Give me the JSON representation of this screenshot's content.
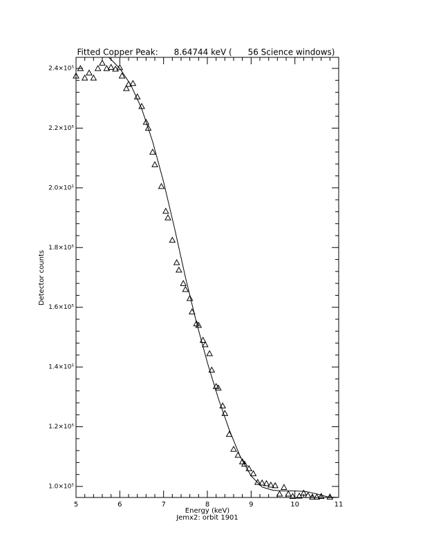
{
  "chart_data": {
    "type": "scatter",
    "title": "Fitted Copper Peak:      8.64744 keV (      56 Science windows)",
    "xlabel": "Energy (keV)",
    "subtitle": "Jemx2: orbit 1901",
    "ylabel": "Detector counts",
    "xlim": [
      5,
      11
    ],
    "xticks": [
      5,
      6,
      7,
      8,
      9,
      10,
      11
    ],
    "ylim": [
      96300,
      243700
    ],
    "yticks": [
      {
        "value": 100000,
        "label": "1.0×10⁵"
      },
      {
        "value": 120000,
        "label": "1.2×10⁵"
      },
      {
        "value": 140000,
        "label": "1.4×10⁵"
      },
      {
        "value": 160000,
        "label": "1.6×10⁵"
      },
      {
        "value": 180000,
        "label": "1.8×10⁵"
      },
      {
        "value": 200000,
        "label": "2.0×10⁵"
      },
      {
        "value": 220000,
        "label": "2.2×10⁵"
      },
      {
        "value": 240000,
        "label": "2.4×10⁵"
      }
    ],
    "series": [
      {
        "marker": "triangle",
        "color": "#000000",
        "x": [
          5.0,
          5.1,
          5.2,
          5.3,
          5.4,
          5.5,
          5.6,
          5.7,
          5.8,
          5.9,
          6.0,
          6.05,
          6.15,
          6.2,
          6.3,
          6.4,
          6.5,
          6.6,
          6.65,
          6.75,
          6.8,
          6.95,
          7.05,
          7.1,
          7.2,
          7.3,
          7.35,
          7.45,
          7.5,
          7.6,
          7.65,
          7.75,
          7.8,
          7.9,
          7.95,
          8.05,
          8.1,
          8.2,
          8.25,
          8.35,
          8.4,
          8.5,
          8.6,
          8.7,
          8.8,
          8.85,
          8.95,
          9.05,
          9.15,
          9.25,
          9.35,
          9.45,
          9.55,
          9.65,
          9.75,
          9.85,
          9.95,
          10.1,
          10.2,
          10.3,
          10.4,
          10.5,
          10.6,
          10.8
        ],
        "values": [
          237500,
          240000,
          236800,
          238500,
          236800,
          240000,
          241800,
          240000,
          240400,
          239800,
          240300,
          237500,
          233300,
          234700,
          235000,
          230500,
          227300,
          222000,
          220000,
          212000,
          207800,
          200500,
          192200,
          190000,
          182500,
          175000,
          172500,
          168000,
          166000,
          163000,
          158500,
          154500,
          154000,
          149000,
          147500,
          144500,
          139000,
          133500,
          133000,
          127000,
          124500,
          117500,
          112500,
          110500,
          108300,
          107500,
          106000,
          104300,
          101400,
          101200,
          101000,
          100500,
          100300,
          97500,
          99700,
          97500,
          96700,
          96800,
          97800,
          97000,
          96500,
          96500,
          96700,
          96500
        ]
      },
      {
        "style": "line",
        "color": "#000000",
        "x": [
          5.75,
          6.0,
          6.25,
          6.5,
          6.75,
          7.0,
          7.25,
          7.5,
          7.75,
          8.0,
          8.25,
          8.5,
          8.75,
          9.0,
          9.25,
          9.5,
          9.75,
          10.0,
          10.25,
          10.5,
          10.75,
          11.0
        ],
        "values": [
          243700,
          240000,
          234500,
          226500,
          215500,
          202000,
          186500,
          170000,
          155000,
          141500,
          129500,
          119000,
          110000,
          103500,
          99800,
          98700,
          98500,
          98500,
          98300,
          97500,
          96500,
          96300
        ]
      }
    ]
  }
}
